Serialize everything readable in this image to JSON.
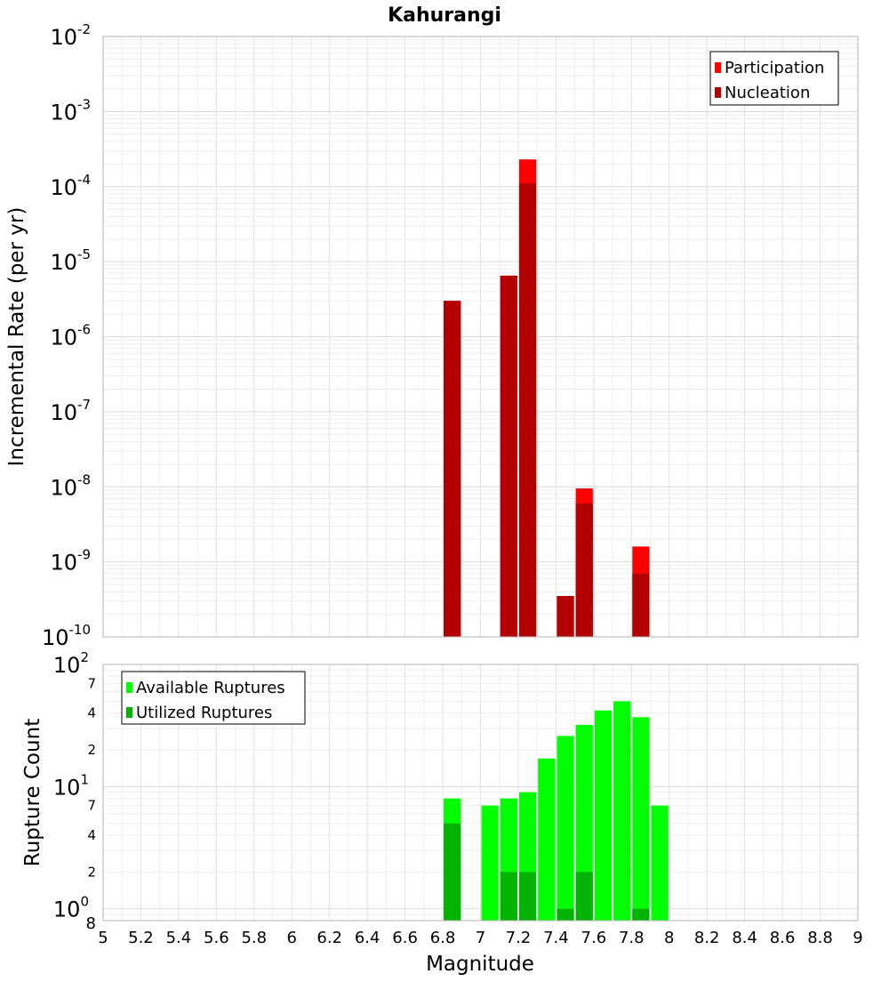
{
  "title": "Kahurangi",
  "colors": {
    "participation": "#ff0000",
    "nucleation": "#b30000",
    "available": "#00ff00",
    "utilized": "#00b300",
    "grid": "#e6e6e6",
    "plot_border": "#b3b3b3"
  },
  "chart_data": [
    {
      "type": "bar",
      "title": "Kahurangi",
      "ylabel": "Incremental Rate (per yr)",
      "xlabel": "",
      "xlim": [
        5,
        9
      ],
      "ylim": [
        1e-10,
        0.01
      ],
      "yscale": "log",
      "grid": true,
      "legend_position": "top-right",
      "y_tick_labels": [
        {
          "base": "10",
          "exp": "-10",
          "value": 1e-10
        },
        {
          "base": "10",
          "exp": "-9",
          "value": 1e-09
        },
        {
          "base": "10",
          "exp": "-8",
          "value": 1e-08
        },
        {
          "base": "10",
          "exp": "-7",
          "value": 1e-07
        },
        {
          "base": "10",
          "exp": "-6",
          "value": 1e-06
        },
        {
          "base": "10",
          "exp": "-5",
          "value": 1e-05
        },
        {
          "base": "10",
          "exp": "-4",
          "value": 0.0001
        },
        {
          "base": "10",
          "exp": "-3",
          "value": 0.001
        },
        {
          "base": "10",
          "exp": "-2",
          "value": 0.01
        }
      ],
      "series": [
        {
          "name": "Participation",
          "color": "#ff0000",
          "x": [
            6.85,
            7.15,
            7.25,
            7.45,
            7.55,
            7.85
          ],
          "values": [
            3e-06,
            6.5e-06,
            0.00023,
            3.5e-10,
            9.5e-09,
            1.6e-09
          ]
        },
        {
          "name": "Nucleation",
          "color": "#b30000",
          "x": [
            6.85,
            7.15,
            7.25,
            7.45,
            7.55,
            7.85
          ],
          "values": [
            3e-06,
            6.5e-06,
            0.00011,
            3.5e-10,
            6e-09,
            7e-10
          ]
        }
      ]
    },
    {
      "type": "bar",
      "title": "",
      "ylabel": "Rupture Count",
      "xlabel": "Magnitude",
      "xlim": [
        5,
        9
      ],
      "ylim": [
        0.8,
        100
      ],
      "yscale": "log",
      "grid": true,
      "legend_position": "top-left",
      "x_tick_labels": [
        "5",
        "5.2",
        "5.4",
        "5.6",
        "5.8",
        "6",
        "6.2",
        "6.4",
        "6.6",
        "6.8",
        "7",
        "7.2",
        "7.4",
        "7.6",
        "7.8",
        "8",
        "8.2",
        "8.4",
        "8.6",
        "8.8",
        "9"
      ],
      "y_major_labels": [
        {
          "base": "10",
          "exp": "0",
          "value": 1
        },
        {
          "base": "10",
          "exp": "1",
          "value": 10
        },
        {
          "base": "10",
          "exp": "2",
          "value": 100
        }
      ],
      "y_minor_labels": [
        {
          "label": "2",
          "value": 2
        },
        {
          "label": "4",
          "value": 4
        },
        {
          "label": "7",
          "value": 7
        },
        {
          "label": "2",
          "value": 20
        },
        {
          "label": "4",
          "value": 40
        },
        {
          "label": "7",
          "value": 70
        }
      ],
      "y_bottom_label": "8",
      "series": [
        {
          "name": "Available Ruptures",
          "color": "#00ff00",
          "x": [
            6.85,
            7.05,
            7.15,
            7.25,
            7.35,
            7.45,
            7.55,
            7.65,
            7.75,
            7.85,
            7.95
          ],
          "values": [
            8,
            7,
            8,
            9,
            17,
            26,
            32,
            42,
            50,
            37,
            7
          ]
        },
        {
          "name": "Utilized Ruptures",
          "color": "#00b300",
          "x": [
            6.85,
            7.15,
            7.25,
            7.45,
            7.55,
            7.85
          ],
          "values": [
            5,
            2,
            2,
            1,
            2,
            1
          ]
        }
      ]
    }
  ]
}
